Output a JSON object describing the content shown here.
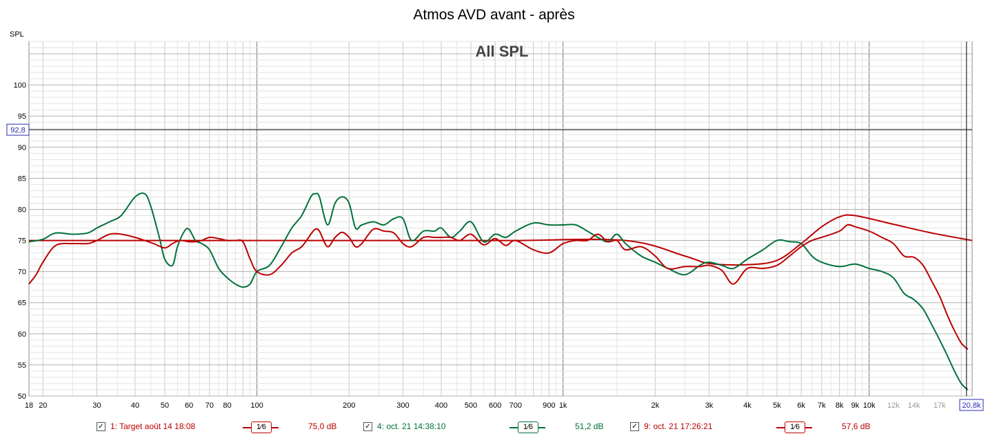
{
  "title": "Atmos AVD avant - après",
  "chart_data": {
    "type": "line",
    "title": "All SPL",
    "ylabel": "SPL",
    "ylim": [
      50,
      107
    ],
    "xlim": [
      18,
      21700
    ],
    "xscale": "log",
    "y_ticks": [
      50,
      55,
      60,
      65,
      70,
      75,
      80,
      85,
      90,
      95,
      100
    ],
    "x_ticks": [
      {
        "v": 18,
        "label": "18"
      },
      {
        "v": 20,
        "label": "20"
      },
      {
        "v": 30,
        "label": "30"
      },
      {
        "v": 40,
        "label": "40"
      },
      {
        "v": 50,
        "label": "50"
      },
      {
        "v": 60,
        "label": "60"
      },
      {
        "v": 70,
        "label": "70"
      },
      {
        "v": 80,
        "label": "80"
      },
      {
        "v": 100,
        "label": "100"
      },
      {
        "v": 200,
        "label": "200"
      },
      {
        "v": 300,
        "label": "300"
      },
      {
        "v": 400,
        "label": "400"
      },
      {
        "v": 500,
        "label": "500"
      },
      {
        "v": 600,
        "label": "600"
      },
      {
        "v": 700,
        "label": "700"
      },
      {
        "v": 900,
        "label": "900"
      },
      {
        "v": 1000,
        "label": "1k"
      },
      {
        "v": 2000,
        "label": "2k"
      },
      {
        "v": 3000,
        "label": "3k"
      },
      {
        "v": 4000,
        "label": "4k"
      },
      {
        "v": 5000,
        "label": "5k"
      },
      {
        "v": 6000,
        "label": "6k"
      },
      {
        "v": 7000,
        "label": "7k"
      },
      {
        "v": 8000,
        "label": "8k"
      },
      {
        "v": 9000,
        "label": "9k"
      },
      {
        "v": 10000,
        "label": "10k"
      },
      {
        "v": 12000,
        "label": "12k",
        "faded": true
      },
      {
        "v": 14000,
        "label": "14k",
        "faded": true
      },
      {
        "v": 17000,
        "label": "17k",
        "faded": true
      }
    ],
    "cursor": {
      "y": 92.8,
      "y_label": "92,8",
      "x": 20800,
      "x_label": "20,8k"
    },
    "grid": true,
    "series": [
      {
        "name": "1: Target août 14 18:08",
        "color": "#bb0000",
        "x": [
          18,
          400,
          700,
          1600,
          2500,
          3000,
          4000,
          5000,
          6000,
          7000,
          8000,
          9000,
          12000,
          16000,
          21700
        ],
        "y": [
          75,
          75,
          75,
          75,
          72.5,
          71.3,
          71.1,
          71.8,
          74.5,
          77.2,
          78.8,
          79,
          77.6,
          76.2,
          75
        ]
      },
      {
        "name": "4: oct. 21 14:38:10",
        "color": "#00703a",
        "x": [
          18,
          20,
          22,
          25,
          28,
          30,
          33,
          36,
          40,
          43,
          45,
          48,
          50,
          53,
          55,
          58,
          60,
          63,
          66,
          70,
          75,
          80,
          85,
          90,
          95,
          100,
          110,
          120,
          130,
          140,
          150,
          155,
          160,
          170,
          180,
          190,
          200,
          210,
          220,
          240,
          260,
          280,
          300,
          320,
          350,
          380,
          400,
          430,
          460,
          500,
          550,
          600,
          650,
          700,
          800,
          900,
          1000,
          1100,
          1200,
          1300,
          1400,
          1500,
          1600,
          1800,
          2000,
          2200,
          2500,
          2800,
          3000,
          3300,
          3600,
          4000,
          4500,
          5000,
          5500,
          6000,
          6500,
          7000,
          8000,
          9000,
          10000,
          11000,
          12000,
          13000,
          14000,
          15000,
          16000,
          17000,
          18000,
          19000,
          20000,
          21000
        ],
        "y": [
          74.8,
          75.2,
          76.2,
          76,
          76.2,
          77,
          78,
          79,
          82,
          82.5,
          80.5,
          75.5,
          72,
          71,
          74,
          76.5,
          76.8,
          75,
          74.5,
          73.5,
          70.5,
          69,
          68,
          67.5,
          68,
          70,
          71,
          74,
          77,
          79,
          82,
          82.5,
          82,
          77.5,
          81,
          82,
          81,
          77,
          77.5,
          78,
          77.5,
          78.5,
          78.5,
          75,
          76.5,
          76.5,
          77,
          75.5,
          76.5,
          78,
          74.8,
          76,
          75.5,
          76.5,
          77.8,
          77.5,
          77.5,
          77.5,
          76.5,
          75.5,
          74.8,
          76,
          74.5,
          72.5,
          71.5,
          70.5,
          69.5,
          71,
          71.5,
          71,
          70.5,
          72,
          73.5,
          75,
          74.8,
          74.5,
          72.5,
          71.5,
          70.8,
          71.2,
          70.5,
          70,
          69,
          66.5,
          65.5,
          64,
          61.5,
          59,
          56.5,
          54,
          52,
          51
        ]
      },
      {
        "name": "9: oct. 21 17:26:21",
        "color": "#bb0000",
        "x": [
          18,
          19,
          20,
          22,
          25,
          28,
          30,
          33,
          36,
          40,
          43,
          46,
          50,
          53,
          56,
          60,
          63,
          66,
          70,
          75,
          80,
          85,
          90,
          95,
          100,
          110,
          120,
          130,
          140,
          150,
          155,
          160,
          170,
          180,
          190,
          200,
          210,
          220,
          240,
          260,
          280,
          300,
          320,
          350,
          380,
          400,
          430,
          460,
          500,
          550,
          600,
          650,
          700,
          800,
          900,
          1000,
          1100,
          1200,
          1300,
          1400,
          1500,
          1600,
          1800,
          2000,
          2200,
          2500,
          2800,
          3000,
          3300,
          3600,
          4000,
          4500,
          5000,
          5500,
          6000,
          6500,
          7000,
          8000,
          8500,
          9000,
          10000,
          11000,
          12000,
          13000,
          14000,
          15000,
          16000,
          17000,
          18000,
          19000,
          20000,
          21000
        ],
        "y": [
          68,
          69.5,
          71.5,
          74.2,
          74.5,
          74.5,
          75,
          76,
          76,
          75.5,
          75,
          74.5,
          73.8,
          74.5,
          75,
          74.8,
          74.8,
          75,
          75.5,
          75.3,
          75,
          75,
          74.8,
          72,
          70,
          69.5,
          71,
          73,
          74,
          76,
          76.8,
          76.5,
          74,
          75.5,
          76.3,
          75.5,
          74,
          74.5,
          76.8,
          76.5,
          76.2,
          74.5,
          74,
          75.5,
          75.5,
          75.5,
          75.5,
          75,
          76,
          74.3,
          75.3,
          74.2,
          75,
          73.5,
          73,
          74.5,
          75,
          75,
          76,
          74.8,
          75,
          73.5,
          74,
          72.5,
          70.5,
          70.8,
          70.8,
          71,
          70.2,
          68,
          70.5,
          70.5,
          71,
          72.5,
          74,
          75,
          75.5,
          76.5,
          77.5,
          77.2,
          76.5,
          75.5,
          74.5,
          72.5,
          72.3,
          71,
          68.5,
          66,
          63,
          60.5,
          58.5,
          57.5
        ]
      }
    ]
  },
  "legend": [
    {
      "checked": true,
      "checkmark": "✓",
      "label": "1: Target août 14 18:08",
      "smoothing": "1⁄6",
      "value": "75,0 dB",
      "color": "#bb0000"
    },
    {
      "checked": true,
      "checkmark": "✓",
      "label": "4: oct. 21 14:38:10",
      "smoothing": "1⁄6",
      "value": "51,2 dB",
      "color": "#00703a"
    },
    {
      "checked": true,
      "checkmark": "✓",
      "label": "9: oct. 21 17:26:21",
      "smoothing": "1⁄6",
      "value": "57,6 dB",
      "color": "#bb0000"
    }
  ]
}
